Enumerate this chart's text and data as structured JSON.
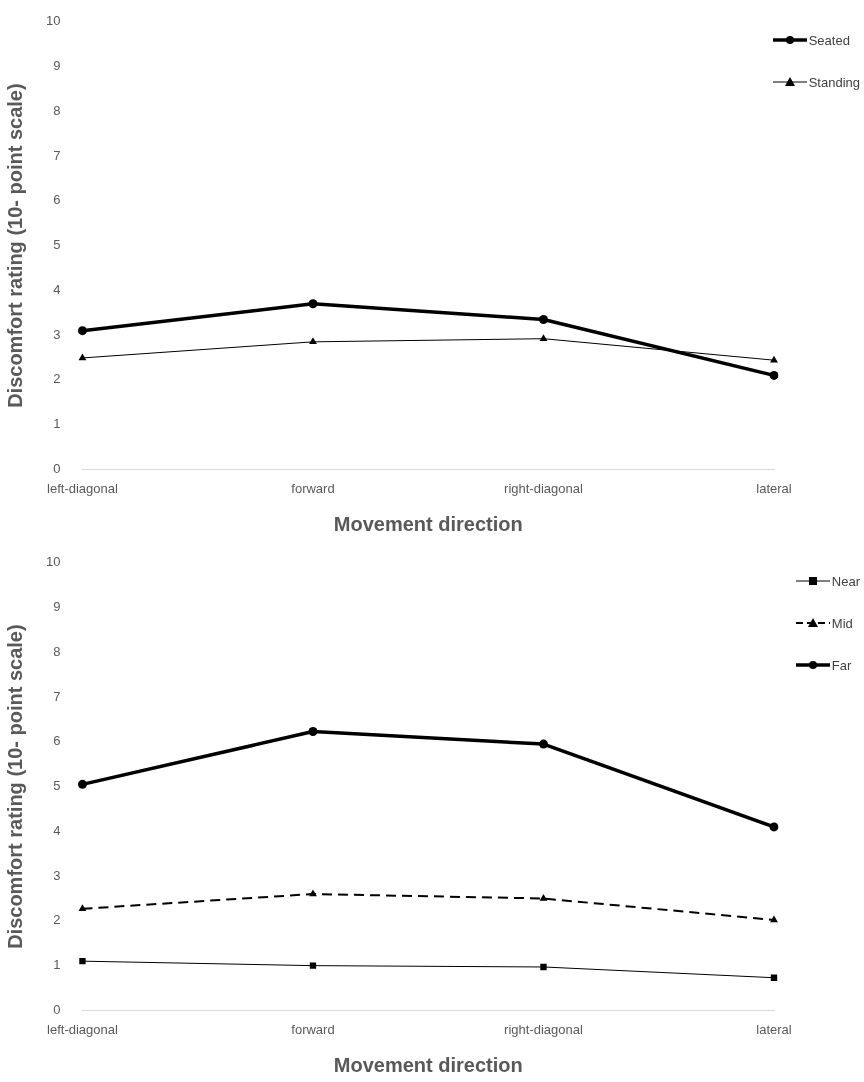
{
  "chart_data": [
    {
      "type": "line",
      "xlabel": "Movement direction",
      "ylabel": "Discomfort rating (10- point scale)",
      "categories": [
        "left-diagonal",
        "forward",
        "right-diagonal",
        "lateral"
      ],
      "ylim": [
        0,
        10
      ],
      "yticks": [
        0,
        1,
        2,
        3,
        4,
        5,
        6,
        7,
        8,
        9,
        10
      ],
      "grid": false,
      "legend": "top right",
      "series": [
        {
          "name": "Seated",
          "color": "#000000",
          "marker": "circle",
          "line_style": "solid",
          "values": [
            3.1,
            3.7,
            3.35,
            2.1
          ]
        },
        {
          "name": "Standing",
          "color": "#000000",
          "marker": "triangle",
          "line_style": "solid",
          "values": [
            2.49,
            2.85,
            2.92,
            2.44
          ]
        }
      ]
    },
    {
      "type": "line",
      "xlabel": "Movement direction",
      "ylabel": "Discomfort rating (10- point scale)",
      "categories": [
        "left-diagonal",
        "forward",
        "right-diagonal",
        "lateral"
      ],
      "ylim": [
        0,
        10
      ],
      "yticks": [
        0,
        1,
        2,
        3,
        4,
        5,
        6,
        7,
        8,
        9,
        10
      ],
      "grid": false,
      "legend": "top right",
      "series": [
        {
          "name": "Near",
          "color": "#000000",
          "marker": "square",
          "line_style": "solid",
          "values": [
            1.1,
            1.0,
            0.97,
            0.73
          ]
        },
        {
          "name": "Mid",
          "color": "#000000",
          "marker": "triangle",
          "line_style": "dashed",
          "values": [
            2.27,
            2.6,
            2.5,
            2.02
          ]
        },
        {
          "name": "Far",
          "color": "#000000",
          "marker": "circle",
          "line_style": "solid",
          "values": [
            5.05,
            6.23,
            5.95,
            4.1
          ]
        }
      ]
    }
  ]
}
